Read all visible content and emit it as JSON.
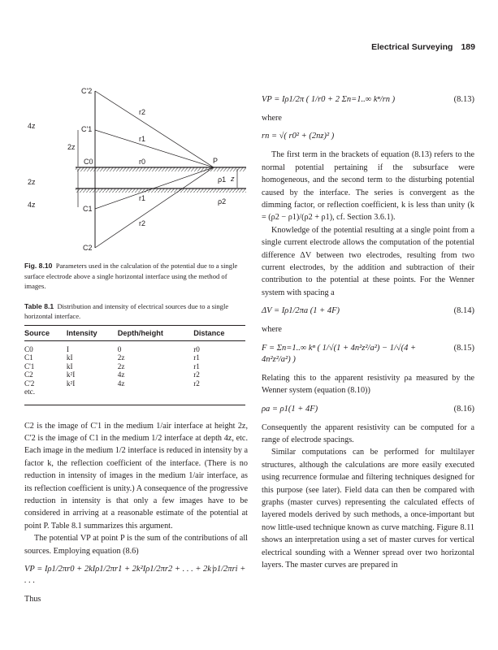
{
  "header": {
    "running_title": "Electrical Surveying",
    "page_number": "189"
  },
  "figure": {
    "labels": {
      "c2p": "C'2",
      "c1p": "C'1",
      "c0": "C0",
      "c1": "C1",
      "c2": "C2",
      "r2": "r2",
      "r1": "r1",
      "r0": "r0",
      "p": "P",
      "rho1": "ρ1",
      "rho2": "ρ2",
      "z": "z",
      "two_z": "2z",
      "four_z": "4z"
    },
    "caption_label": "Fig. 8.10",
    "caption": "Parameters used in the calculation of the potential due to a single surface electrode above a single horizontal interface using the method of images."
  },
  "table": {
    "label": "Table 8.1",
    "caption": "Distribution and intensity of electrical sources due to a single horizontal interface.",
    "headers": [
      "Source",
      "Intensity",
      "Depth/height",
      "Distance"
    ],
    "rows": [
      [
        "C0",
        "I",
        "0",
        "r0"
      ],
      [
        "C1",
        "kI",
        "2z",
        "r1"
      ],
      [
        "C'1",
        "kI",
        "2z",
        "r1"
      ],
      [
        "C2",
        "k²I",
        "4z",
        "r2"
      ],
      [
        "C'2",
        "k²I",
        "4z",
        "r2"
      ],
      [
        "etc.",
        "",
        "",
        ""
      ]
    ]
  },
  "left": {
    "p1": "C2 is the image of C'1 in the medium 1/air interface at height 2z, C'2 is the image of C1 in the medium 1/2 interface at depth 4z, etc. Each image in the medium 1/2 interface is reduced in intensity by a factor k, the reflection coefficient of the interface. (There is no reduction in intensity of images in the medium 1/air interface, as its reflection coefficient is unity.) A consequence of the progressive reduction in intensity is that only a few images have to be considered in arriving at a reasonable estimate of the potential at point P. Table 8.1 summarizes this argument.",
    "p2": "The potential VP at point P is the sum of the contributions of all sources. Employing equation (8.6)",
    "eq": "VP = Iρ1/2πr0 + 2kIρ1/2πr1 + 2k²Iρ1/2πr2 + . . . + 2kⁱρ1/2πri + . . .",
    "thus": "Thus"
  },
  "right": {
    "eq813": "VP = Iρ1/2π ( 1/r0 + 2 Σn=1..∞ kⁿ/rn )",
    "eq813_num": "(8.13)",
    "where1": "where",
    "eq_rn": "rn = √( r0² + (2nz)² )",
    "p1": "The first term in the brackets of equation (8.13) refers to the normal potential pertaining if the subsurface were homogeneous, and the second term to the disturbing potential caused by the interface. The series is convergent as the dimming factor, or reflection coefficient, k is less than unity (k = (ρ2 − ρ1)/(ρ2 + ρ1), cf. Section 3.6.1).",
    "p2": "Knowledge of the potential resulting at a single point from a single current electrode allows the computation of the potential difference ΔV between two electrodes, resulting from two current electrodes, by the addition and subtraction of their contribution to the potential at these points. For the Wenner system with spacing a",
    "eq814": "ΔV = Iρ1/2πa (1 + 4F)",
    "eq814_num": "(8.14)",
    "where2": "where",
    "eq815": "F = Σn=1..∞ kⁿ ( 1/√(1 + 4n²z²/a²) − 1/√(4 + 4n²z²/a²) )",
    "eq815_num": "(8.15)",
    "p3": "Relating this to the apparent resistivity ρa measured by the Wenner system (equation (8.10))",
    "eq816": "ρa = ρ1(1 + 4F)",
    "eq816_num": "(8.16)",
    "p4": "Consequently the apparent resistivity can be computed for a range of electrode spacings.",
    "p5": "Similar computations can be performed for multilayer structures, although the calculations are more easily executed using recurrence formulae and filtering techniques designed for this purpose (see later). Field data can then be compared with graphs (master curves) representing the calculated effects of layered models derived by such methods, a once-important but now little-used technique known as curve matching. Figure 8.11 shows an interpretation using a set of master curves for vertical electrical sounding with a Wenner spread over two horizontal layers. The master curves are prepared in"
  }
}
